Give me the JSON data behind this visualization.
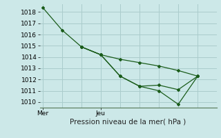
{
  "background_color": "#cce8e8",
  "grid_color": "#aacccc",
  "line_color": "#1a5c1a",
  "xlabel": "Pression niveau de la mer( hPa )",
  "ylim": [
    1009.5,
    1018.7
  ],
  "yticks": [
    1010,
    1011,
    1012,
    1013,
    1014,
    1015,
    1016,
    1017,
    1018
  ],
  "xlim": [
    -0.2,
    11.8
  ],
  "xtick_positions": [
    0.0,
    4.0
  ],
  "xtick_labels": [
    "Mer",
    "Jeu"
  ],
  "series": [
    {
      "x": [
        0.0,
        1.33,
        2.67,
        4.0,
        5.33,
        6.67,
        8.0,
        9.33,
        10.67
      ],
      "y": [
        1018.4,
        1016.4,
        1014.9,
        1014.2,
        1012.3,
        1011.4,
        1011.0,
        1009.8,
        1012.3
      ]
    },
    {
      "x": [
        2.67,
        4.0,
        5.33,
        6.67,
        8.0,
        9.33,
        10.67
      ],
      "y": [
        1014.9,
        1014.2,
        1013.8,
        1013.5,
        1013.2,
        1012.8,
        1012.3
      ]
    },
    {
      "x": [
        2.67,
        4.0,
        5.33,
        6.67,
        8.0,
        9.33,
        10.67
      ],
      "y": [
        1014.9,
        1014.2,
        1012.3,
        1011.4,
        1011.5,
        1011.1,
        1012.3
      ]
    }
  ],
  "tick_fontsize": 6.5,
  "xlabel_fontsize": 7.5
}
